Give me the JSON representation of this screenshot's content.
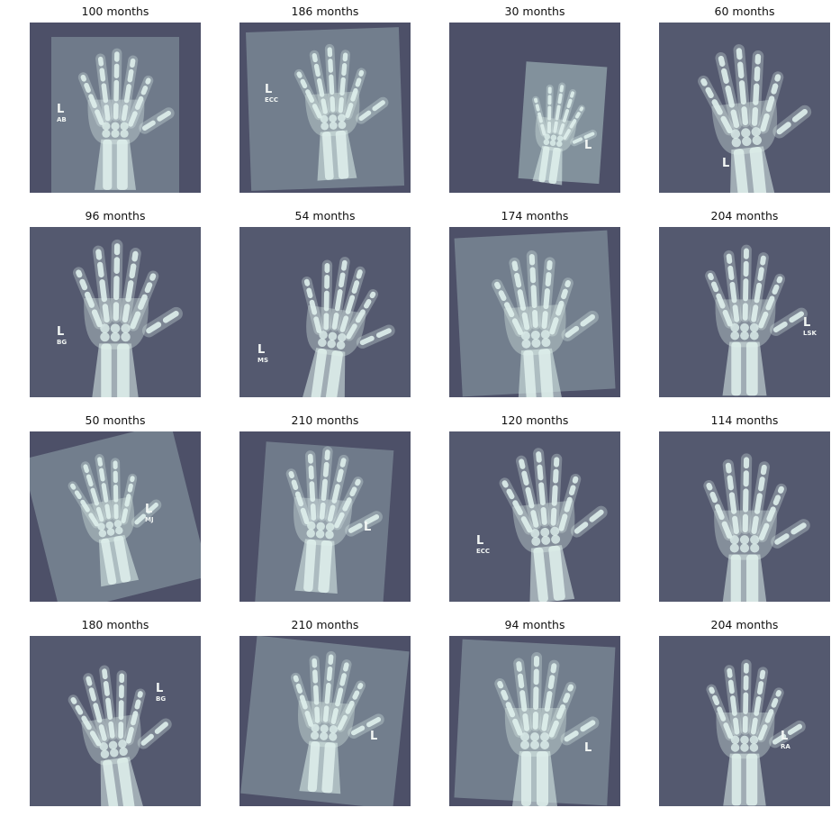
{
  "colors": {
    "background": "#4d5068",
    "plate": "#8c9ca6",
    "bone": "#dff0ec",
    "marker": "#f2f6f4"
  },
  "panels": [
    {
      "title": "100 months",
      "marker": "L",
      "marker_sub": "AB",
      "variant": 0
    },
    {
      "title": "186 months",
      "marker": "L",
      "marker_sub": "ECC",
      "variant": 1
    },
    {
      "title": "30 months",
      "marker": "L",
      "marker_sub": "",
      "variant": 2
    },
    {
      "title": "60 months",
      "marker": "L",
      "marker_sub": "",
      "variant": 3
    },
    {
      "title": "96 months",
      "marker": "L",
      "marker_sub": "BG",
      "variant": 3
    },
    {
      "title": "54 months",
      "marker": "L",
      "marker_sub": "MS",
      "variant": 3
    },
    {
      "title": "174 months",
      "marker": "",
      "marker_sub": "",
      "variant": 1
    },
    {
      "title": "204 months",
      "marker": "L",
      "marker_sub": "LSK",
      "variant": 3
    },
    {
      "title": "50 months",
      "marker": "L",
      "marker_sub": "MJ",
      "variant": 1
    },
    {
      "title": "210 months",
      "marker": "L",
      "marker_sub": "",
      "variant": 1
    },
    {
      "title": "120 months",
      "marker": "L",
      "marker_sub": "ECC",
      "variant": 3
    },
    {
      "title": "114 months",
      "marker": "",
      "marker_sub": "",
      "variant": 3
    },
    {
      "title": "180 months",
      "marker": "L",
      "marker_sub": "BG",
      "variant": 3
    },
    {
      "title": "210 months",
      "marker": "L",
      "marker_sub": "",
      "variant": 1
    },
    {
      "title": "94 months",
      "marker": "L",
      "marker_sub": "",
      "variant": 1
    },
    {
      "title": "204 months",
      "marker": "L",
      "marker_sub": "RA",
      "variant": 3
    }
  ]
}
